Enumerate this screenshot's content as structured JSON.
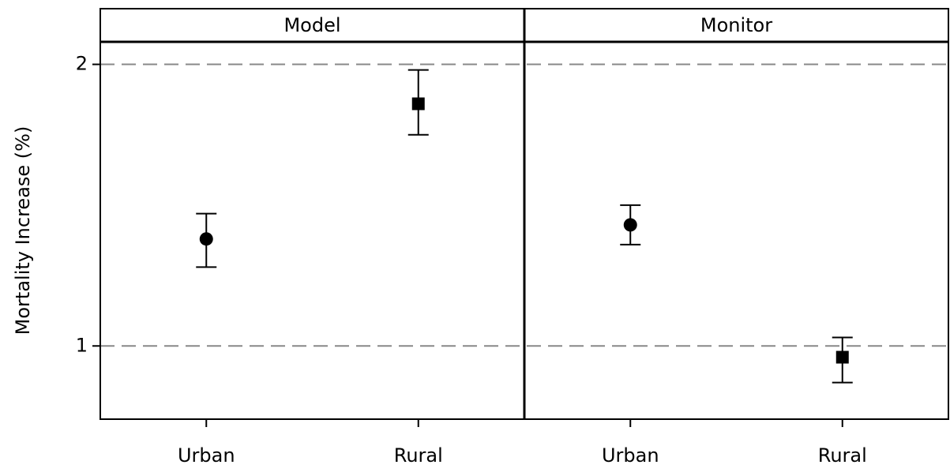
{
  "chart_data": {
    "type": "errorbar",
    "ylabel": "Mortality Increase (%)",
    "ylim": [
      0.74,
      2.08
    ],
    "yticks": [
      1,
      2
    ],
    "grid": true,
    "panels": [
      {
        "title": "Model",
        "categories": [
          "Urban",
          "Rural"
        ],
        "markers": [
          "circle",
          "square"
        ],
        "values": [
          1.38,
          1.86
        ],
        "lower": [
          1.28,
          1.75
        ],
        "upper": [
          1.47,
          1.98
        ]
      },
      {
        "title": "Monitor",
        "categories": [
          "Urban",
          "Rural"
        ],
        "markers": [
          "circle",
          "square"
        ],
        "values": [
          1.43,
          0.96
        ],
        "lower": [
          1.36,
          0.87
        ],
        "upper": [
          1.5,
          1.03
        ]
      }
    ]
  }
}
